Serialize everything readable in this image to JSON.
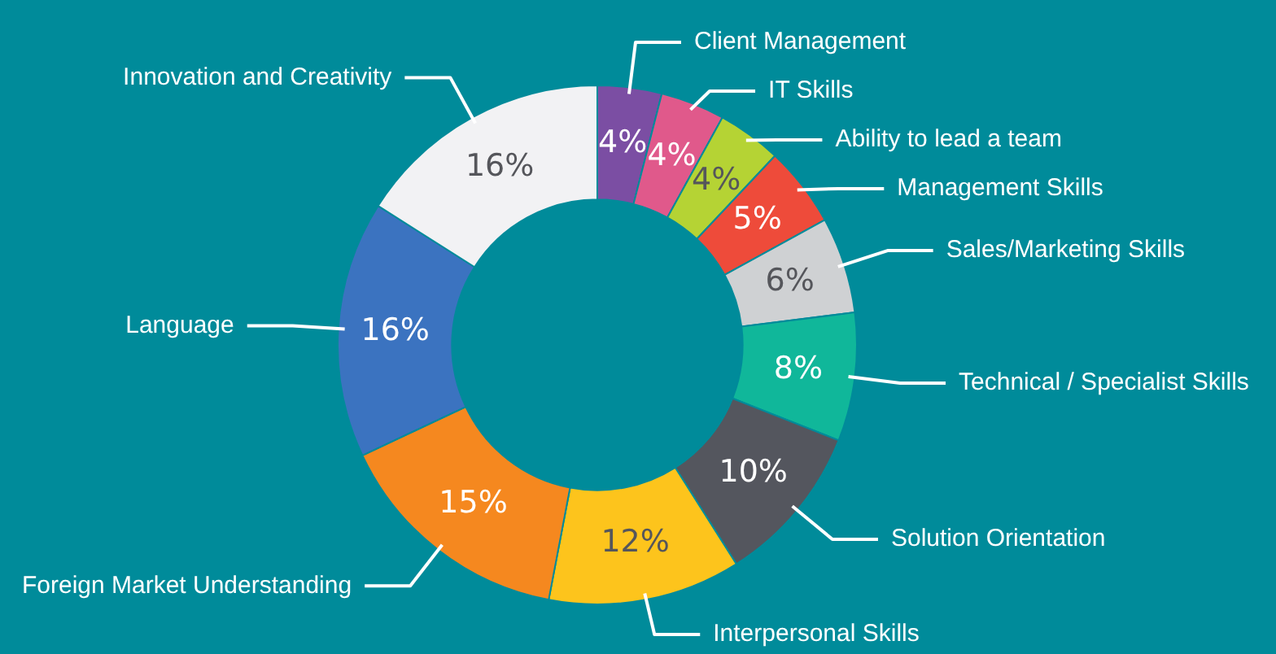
{
  "chart_data": {
    "type": "donut",
    "categories": [
      "Client Management",
      "IT Skills",
      "Ability to lead a team",
      "Management Skills",
      "Sales/Marketing Skills",
      "Technical / Specialist Skills",
      "Solution Orientation",
      "Interpersonal Skills",
      "Foreign Market Understanding",
      "Language",
      "Innovation and Creativity"
    ],
    "values": [
      4,
      4,
      4,
      5,
      6,
      8,
      10,
      12,
      15,
      16,
      16
    ],
    "value_labels": [
      "4%",
      "4%",
      "4%",
      "5%",
      "6%",
      "8%",
      "10%",
      "12%",
      "15%",
      "16%",
      "16%"
    ],
    "colors": [
      "#7b4ea3",
      "#e0598b",
      "#b5d334",
      "#ee4b3a",
      "#cfd1d3",
      "#10b79a",
      "#54565e",
      "#fdc41c",
      "#f5881f",
      "#3b73c0",
      "#f2f2f4"
    ],
    "legend": false
  }
}
